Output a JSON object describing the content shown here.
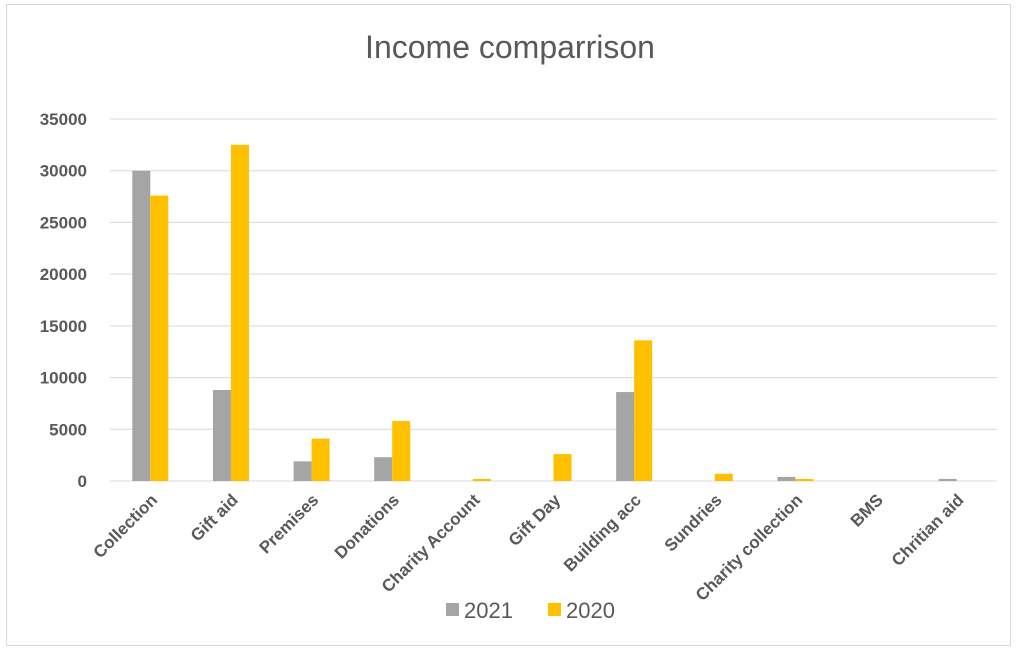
{
  "chart_data": {
    "type": "bar",
    "title": "Income comparrison",
    "categories": [
      "Collection",
      "Gift aid",
      "Premises",
      "Donations",
      "Charity Account",
      "Gift Day",
      "Building acc",
      "Sundries",
      "Charity collection",
      "BMS",
      "Chritian aid"
    ],
    "series": [
      {
        "name": "2021",
        "color": "#a5a5a5",
        "values": [
          30000,
          8800,
          1900,
          2300,
          0,
          0,
          8600,
          0,
          400,
          0,
          200
        ]
      },
      {
        "name": "2020",
        "color": "#ffc000",
        "values": [
          27600,
          32500,
          4100,
          5800,
          200,
          2600,
          13600,
          700,
          200,
          0,
          0
        ]
      }
    ],
    "ylim": [
      0,
      35000
    ],
    "yticks": [
      0,
      5000,
      10000,
      15000,
      20000,
      25000,
      30000,
      35000
    ],
    "grid": true,
    "legend_position": "bottom",
    "xlabel": "",
    "ylabel": ""
  }
}
